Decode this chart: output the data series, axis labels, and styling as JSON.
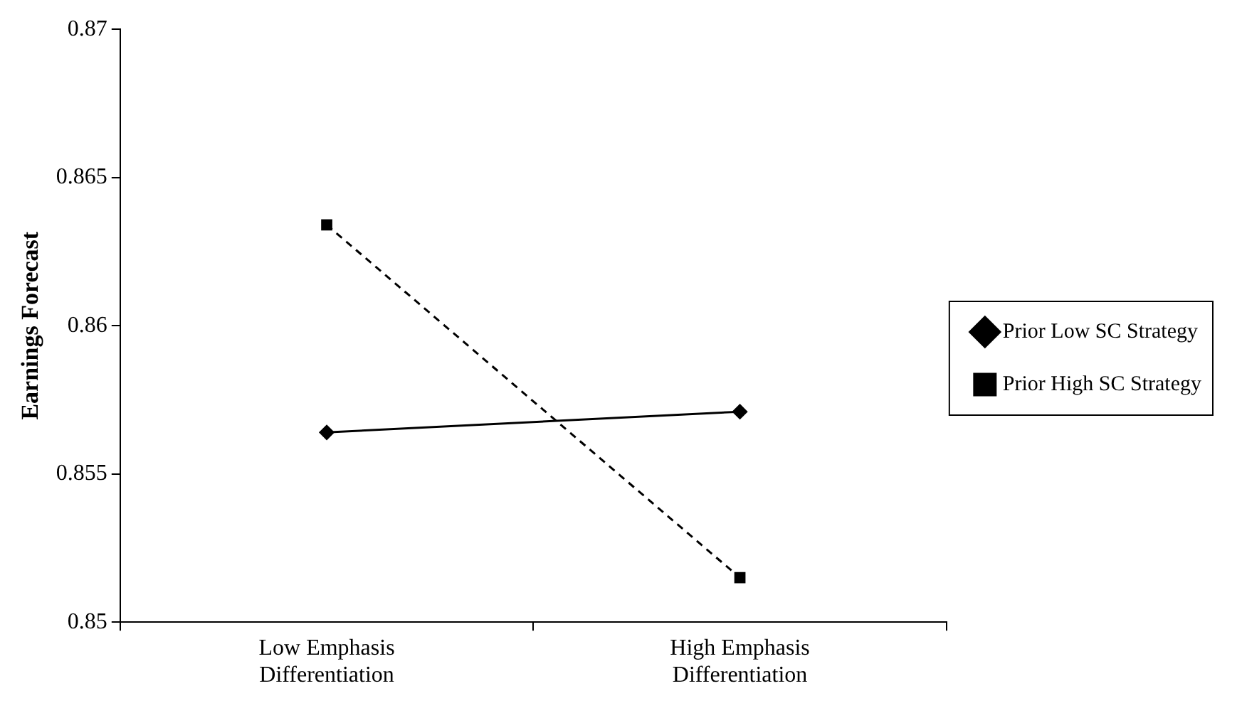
{
  "chart_data": {
    "type": "line",
    "ylabel": "Earnings Forecast",
    "categories": [
      "Low Emphasis Differentiation",
      "High Emphasis Differentiation"
    ],
    "series": [
      {
        "name": "Prior Low SC Strategy",
        "color": "#000000",
        "values": [
          0.8564,
          0.8571
        ],
        "marker": "diamond",
        "line_style": "solid"
      },
      {
        "name": "Prior High SC Strategy",
        "color": "#000000",
        "values": [
          0.8634,
          0.8515
        ],
        "marker": "square",
        "line_style": "dashed"
      }
    ],
    "ylim": [
      0.85,
      0.87
    ],
    "yticks": [
      0.85,
      0.855,
      0.86,
      0.865,
      0.87
    ],
    "grid": false,
    "legend": "right"
  }
}
